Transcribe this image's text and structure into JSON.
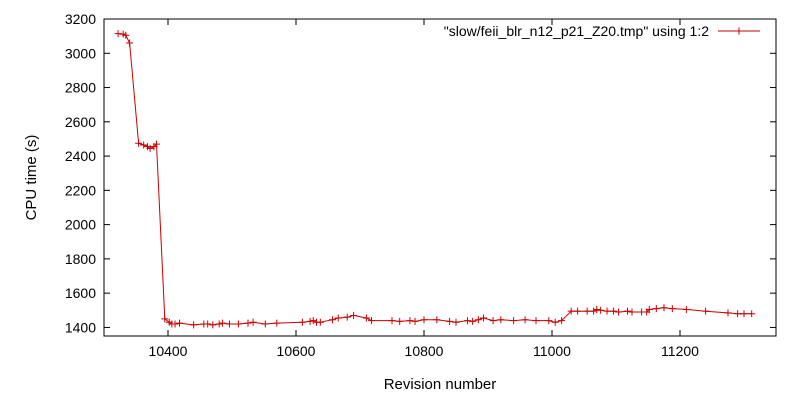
{
  "chart_data": {
    "type": "line",
    "xlabel": "Revision number",
    "ylabel": "CPU time (s)",
    "xlim": [
      10300,
      11350
    ],
    "ylim": [
      1350,
      3200
    ],
    "xticks": [
      10400,
      10600,
      10800,
      11000,
      11200
    ],
    "yticks": [
      1400,
      1600,
      1800,
      2000,
      2200,
      2400,
      2600,
      2800,
      3000,
      3200
    ],
    "grid": false,
    "legend_position": "top-right",
    "series": [
      {
        "name": "\"slow/feii_blr_n12_p21_Z20.tmp\" using 1:2",
        "color": "#cc0000",
        "marker": "plus",
        "points": [
          [
            10322,
            3115
          ],
          [
            10330,
            3112
          ],
          [
            10334,
            3105
          ],
          [
            10340,
            3060
          ],
          [
            10354,
            2475
          ],
          [
            10362,
            2465
          ],
          [
            10368,
            2455
          ],
          [
            10372,
            2445
          ],
          [
            10378,
            2455
          ],
          [
            10382,
            2470
          ],
          [
            10395,
            1450
          ],
          [
            10402,
            1430
          ],
          [
            10406,
            1420
          ],
          [
            10411,
            1420
          ],
          [
            10418,
            1425
          ],
          [
            10440,
            1415
          ],
          [
            10456,
            1420
          ],
          [
            10462,
            1420
          ],
          [
            10470,
            1415
          ],
          [
            10480,
            1420
          ],
          [
            10485,
            1425
          ],
          [
            10496,
            1420
          ],
          [
            10510,
            1420
          ],
          [
            10525,
            1425
          ],
          [
            10533,
            1430
          ],
          [
            10552,
            1420
          ],
          [
            10570,
            1425
          ],
          [
            10610,
            1430
          ],
          [
            10622,
            1435
          ],
          [
            10627,
            1440
          ],
          [
            10632,
            1430
          ],
          [
            10638,
            1430
          ],
          [
            10657,
            1445
          ],
          [
            10666,
            1455
          ],
          [
            10680,
            1460
          ],
          [
            10690,
            1470
          ],
          [
            10710,
            1455
          ],
          [
            10718,
            1440
          ],
          [
            10750,
            1440
          ],
          [
            10762,
            1435
          ],
          [
            10778,
            1440
          ],
          [
            10786,
            1435
          ],
          [
            10800,
            1445
          ],
          [
            10820,
            1445
          ],
          [
            10840,
            1435
          ],
          [
            10850,
            1430
          ],
          [
            10868,
            1440
          ],
          [
            10876,
            1435
          ],
          [
            10885,
            1445
          ],
          [
            10893,
            1455
          ],
          [
            10908,
            1440
          ],
          [
            10920,
            1445
          ],
          [
            10940,
            1440
          ],
          [
            10958,
            1445
          ],
          [
            10975,
            1440
          ],
          [
            10995,
            1440
          ],
          [
            11005,
            1430
          ],
          [
            11015,
            1440
          ],
          [
            11030,
            1495
          ],
          [
            11040,
            1495
          ],
          [
            11055,
            1495
          ],
          [
            11065,
            1495
          ],
          [
            11070,
            1505
          ],
          [
            11076,
            1500
          ],
          [
            11086,
            1495
          ],
          [
            11096,
            1495
          ],
          [
            11104,
            1490
          ],
          [
            11118,
            1495
          ],
          [
            11125,
            1490
          ],
          [
            11140,
            1490
          ],
          [
            11148,
            1490
          ],
          [
            11152,
            1505
          ],
          [
            11163,
            1510
          ],
          [
            11175,
            1515
          ],
          [
            11188,
            1510
          ],
          [
            11210,
            1505
          ],
          [
            11240,
            1495
          ],
          [
            11275,
            1485
          ],
          [
            11290,
            1480
          ],
          [
            11300,
            1480
          ],
          [
            11312,
            1480
          ]
        ]
      }
    ]
  }
}
